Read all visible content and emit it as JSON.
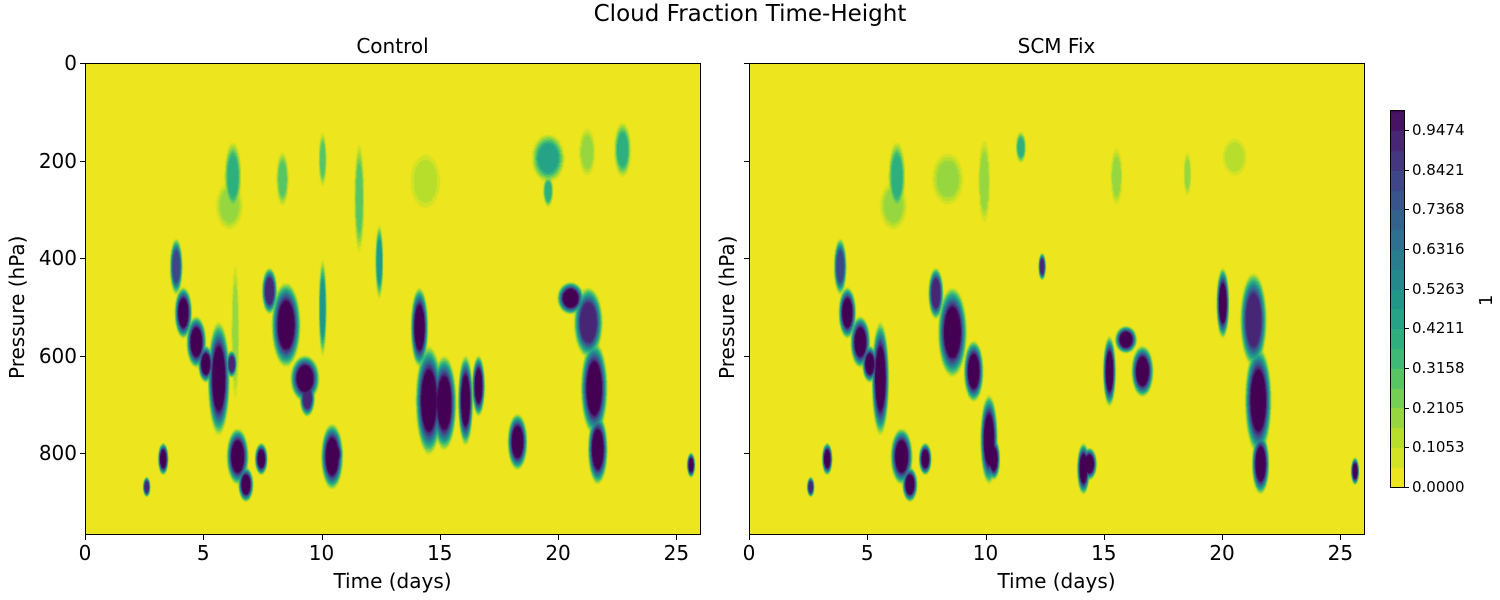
{
  "figure": {
    "suptitle": "Cloud Fraction Time-Height"
  },
  "axes_common": {
    "xlabel": "Time (days)",
    "ylabel": "Pressure (hPa)",
    "xticks": [
      "0",
      "5",
      "10",
      "15",
      "20",
      "25"
    ],
    "yticks": [
      "0",
      "200",
      "400",
      "600",
      "800"
    ]
  },
  "colorbar": {
    "label": "1",
    "ticks": [
      "0.0000",
      "0.1053",
      "0.2105",
      "0.3158",
      "0.4211",
      "0.5263",
      "0.6316",
      "0.7368",
      "0.8421",
      "0.9474"
    ]
  },
  "chart_data": [
    {
      "type": "heatmap",
      "title": "Control",
      "xlabel": "Time (days)",
      "ylabel": "Pressure (hPa)",
      "xlim": [
        0,
        26
      ],
      "ylim": [
        965,
        0
      ],
      "yaxis_inverted": true,
      "colormap": "viridis_r",
      "clim": [
        0,
        1
      ],
      "levels": 20,
      "background_value": 0,
      "features": [
        {
          "t0": 2.5,
          "t1": 2.6,
          "p0": 850,
          "p1": 885,
          "v": 0.9
        },
        {
          "t0": 3.1,
          "t1": 3.4,
          "p0": 780,
          "p1": 840,
          "v": 1.0
        },
        {
          "t0": 3.6,
          "t1": 4.0,
          "p0": 360,
          "p1": 470,
          "v": 0.8
        },
        {
          "t0": 3.8,
          "t1": 4.4,
          "p0": 460,
          "p1": 560,
          "v": 1.0
        },
        {
          "t0": 4.3,
          "t1": 5.0,
          "p0": 520,
          "p1": 620,
          "v": 1.0
        },
        {
          "t0": 4.8,
          "t1": 5.3,
          "p0": 580,
          "p1": 650,
          "v": 1.0
        },
        {
          "t0": 5.2,
          "t1": 6.0,
          "p0": 530,
          "p1": 760,
          "v": 1.0
        },
        {
          "t0": 5.5,
          "t1": 6.6,
          "p0": 240,
          "p1": 340,
          "v": 0.2
        },
        {
          "t0": 5.9,
          "t1": 6.5,
          "p0": 160,
          "p1": 300,
          "v": 0.4
        },
        {
          "t0": 6.0,
          "t1": 6.3,
          "p0": 590,
          "p1": 640,
          "v": 0.9
        },
        {
          "t0": 6.0,
          "t1": 6.8,
          "p0": 750,
          "p1": 860,
          "v": 1.0
        },
        {
          "t0": 6.5,
          "t1": 7.0,
          "p0": 830,
          "p1": 895,
          "v": 1.0
        },
        {
          "t0": 6.2,
          "t1": 6.4,
          "p0": 400,
          "p1": 700,
          "v": 0.2
        },
        {
          "t0": 7.2,
          "t1": 7.6,
          "p0": 780,
          "p1": 840,
          "v": 1.0
        },
        {
          "t0": 7.5,
          "t1": 8.0,
          "p0": 420,
          "p1": 510,
          "v": 0.9
        },
        {
          "t0": 7.9,
          "t1": 9.0,
          "p0": 450,
          "p1": 620,
          "v": 1.0
        },
        {
          "t0": 8.1,
          "t1": 8.5,
          "p0": 180,
          "p1": 290,
          "v": 0.3
        },
        {
          "t0": 8.7,
          "t1": 9.8,
          "p0": 600,
          "p1": 690,
          "v": 1.0
        },
        {
          "t0": 9.1,
          "t1": 9.6,
          "p0": 650,
          "p1": 720,
          "v": 0.9
        },
        {
          "t0": 9.9,
          "t1": 10.1,
          "p0": 140,
          "p1": 250,
          "v": 0.3
        },
        {
          "t0": 9.9,
          "t1": 10.1,
          "p0": 400,
          "p1": 600,
          "v": 0.5
        },
        {
          "t0": 10.0,
          "t1": 10.8,
          "p0": 740,
          "p1": 870,
          "v": 1.0
        },
        {
          "t0": 10.2,
          "t1": 10.8,
          "p0": 770,
          "p1": 830,
          "v": 1.0
        },
        {
          "t0": 11.4,
          "t1": 11.7,
          "p0": 160,
          "p1": 390,
          "v": 0.3
        },
        {
          "t0": 12.3,
          "t1": 12.5,
          "p0": 330,
          "p1": 480,
          "v": 0.5
        },
        {
          "t0": 13.7,
          "t1": 15.0,
          "p0": 180,
          "p1": 300,
          "v": 0.15
        },
        {
          "t0": 13.8,
          "t1": 14.4,
          "p0": 460,
          "p1": 620,
          "v": 1.0
        },
        {
          "t0": 14.0,
          "t1": 15.0,
          "p0": 580,
          "p1": 800,
          "v": 1.0
        },
        {
          "t0": 14.7,
          "t1": 15.6,
          "p0": 600,
          "p1": 790,
          "v": 1.0
        },
        {
          "t0": 15.8,
          "t1": 16.3,
          "p0": 600,
          "p1": 780,
          "v": 1.0
        },
        {
          "t0": 16.4,
          "t1": 16.8,
          "p0": 600,
          "p1": 720,
          "v": 1.0
        },
        {
          "t0": 17.9,
          "t1": 18.6,
          "p0": 720,
          "p1": 830,
          "v": 1.0
        },
        {
          "t0": 18.9,
          "t1": 20.2,
          "p0": 145,
          "p1": 240,
          "v": 0.45
        },
        {
          "t0": 19.4,
          "t1": 19.7,
          "p0": 230,
          "p1": 290,
          "v": 0.4
        },
        {
          "t0": 20.0,
          "t1": 21.0,
          "p0": 450,
          "p1": 510,
          "v": 1.0
        },
        {
          "t0": 20.7,
          "t1": 21.8,
          "p0": 460,
          "p1": 600,
          "v": 0.9
        },
        {
          "t0": 21.0,
          "t1": 22.0,
          "p0": 570,
          "p1": 760,
          "v": 1.0
        },
        {
          "t0": 21.3,
          "t1": 22.0,
          "p0": 720,
          "p1": 860,
          "v": 1.0
        },
        {
          "t0": 20.9,
          "t1": 21.5,
          "p0": 130,
          "p1": 230,
          "v": 0.2
        },
        {
          "t0": 22.4,
          "t1": 23.0,
          "p0": 120,
          "p1": 230,
          "v": 0.4
        },
        {
          "t0": 25.5,
          "t1": 25.7,
          "p0": 800,
          "p1": 845,
          "v": 1.0
        }
      ]
    },
    {
      "type": "heatmap",
      "title": "SCM Fix",
      "xlabel": "Time (days)",
      "ylabel": "Pressure (hPa)",
      "xlim": [
        0,
        26
      ],
      "ylim": [
        965,
        0
      ],
      "yaxis_inverted": true,
      "colormap": "viridis_r",
      "clim": [
        0,
        1
      ],
      "levels": 20,
      "background_value": 0,
      "features": [
        {
          "t0": 2.5,
          "t1": 2.6,
          "p0": 850,
          "p1": 885,
          "v": 0.9
        },
        {
          "t0": 3.1,
          "t1": 3.4,
          "p0": 780,
          "p1": 840,
          "v": 1.0
        },
        {
          "t0": 3.6,
          "t1": 4.0,
          "p0": 360,
          "p1": 470,
          "v": 0.8
        },
        {
          "t0": 3.8,
          "t1": 4.4,
          "p0": 460,
          "p1": 560,
          "v": 1.0
        },
        {
          "t0": 4.3,
          "t1": 5.0,
          "p0": 520,
          "p1": 620,
          "v": 1.0
        },
        {
          "t0": 4.8,
          "t1": 5.3,
          "p0": 580,
          "p1": 650,
          "v": 1.0
        },
        {
          "t0": 5.2,
          "t1": 5.8,
          "p0": 530,
          "p1": 760,
          "v": 1.0
        },
        {
          "t0": 5.5,
          "t1": 6.6,
          "p0": 240,
          "p1": 340,
          "v": 0.2
        },
        {
          "t0": 5.9,
          "t1": 6.5,
          "p0": 160,
          "p1": 300,
          "v": 0.4
        },
        {
          "t0": 6.0,
          "t1": 6.8,
          "p0": 750,
          "p1": 860,
          "v": 1.0
        },
        {
          "t0": 6.5,
          "t1": 7.0,
          "p0": 830,
          "p1": 895,
          "v": 1.0
        },
        {
          "t0": 7.2,
          "t1": 7.6,
          "p0": 780,
          "p1": 840,
          "v": 1.0
        },
        {
          "t0": 7.6,
          "t1": 8.1,
          "p0": 420,
          "p1": 520,
          "v": 0.9
        },
        {
          "t0": 8.0,
          "t1": 9.1,
          "p0": 460,
          "p1": 640,
          "v": 1.0
        },
        {
          "t0": 7.7,
          "t1": 9.0,
          "p0": 180,
          "p1": 290,
          "v": 0.2
        },
        {
          "t0": 9.1,
          "t1": 9.8,
          "p0": 570,
          "p1": 690,
          "v": 1.0
        },
        {
          "t0": 9.8,
          "t1": 10.4,
          "p0": 680,
          "p1": 860,
          "v": 1.0
        },
        {
          "t0": 10.1,
          "t1": 10.5,
          "p0": 770,
          "p1": 850,
          "v": 1.0
        },
        {
          "t0": 9.7,
          "t1": 10.1,
          "p0": 150,
          "p1": 330,
          "v": 0.2
        },
        {
          "t0": 11.3,
          "t1": 11.6,
          "p0": 140,
          "p1": 200,
          "v": 0.4
        },
        {
          "t0": 12.3,
          "t1": 12.4,
          "p0": 390,
          "p1": 440,
          "v": 0.9
        },
        {
          "t0": 13.9,
          "t1": 14.3,
          "p0": 780,
          "p1": 880,
          "v": 1.0
        },
        {
          "t0": 14.1,
          "t1": 14.6,
          "p0": 790,
          "p1": 850,
          "v": 1.0
        },
        {
          "t0": 15.0,
          "t1": 15.4,
          "p0": 560,
          "p1": 700,
          "v": 1.0
        },
        {
          "t0": 15.5,
          "t1": 16.3,
          "p0": 540,
          "p1": 590,
          "v": 1.0
        },
        {
          "t0": 16.2,
          "t1": 17.0,
          "p0": 580,
          "p1": 680,
          "v": 1.0
        },
        {
          "t0": 15.3,
          "t1": 15.7,
          "p0": 170,
          "p1": 290,
          "v": 0.2
        },
        {
          "t0": 18.4,
          "t1": 18.6,
          "p0": 180,
          "p1": 270,
          "v": 0.2
        },
        {
          "t0": 19.8,
          "t1": 20.2,
          "p0": 420,
          "p1": 560,
          "v": 1.0
        },
        {
          "t0": 20.8,
          "t1": 21.8,
          "p0": 430,
          "p1": 620,
          "v": 0.9
        },
        {
          "t0": 21.0,
          "t1": 22.0,
          "p0": 580,
          "p1": 800,
          "v": 1.0
        },
        {
          "t0": 21.3,
          "t1": 21.9,
          "p0": 760,
          "p1": 880,
          "v": 1.0
        },
        {
          "t0": 20.0,
          "t1": 21.0,
          "p0": 150,
          "p1": 230,
          "v": 0.15
        },
        {
          "t0": 25.5,
          "t1": 25.7,
          "p0": 810,
          "p1": 860,
          "v": 1.0
        }
      ]
    }
  ]
}
